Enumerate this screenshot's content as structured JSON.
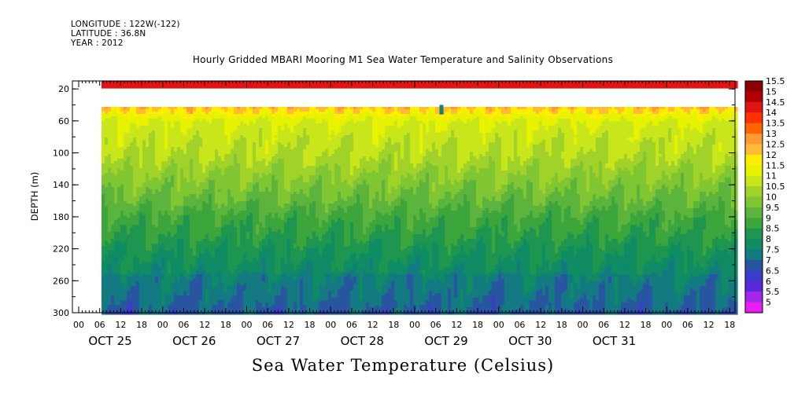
{
  "header": {
    "longitude": "LONGITUDE : 122W(-122)",
    "latitude": "LATITUDE : 36.8N",
    "year": "YEAR : 2012"
  },
  "chart_data": {
    "type": "heatmap",
    "title": "Hourly Gridded MBARI Mooring M1 Sea Water Temperature and Salinity Observations",
    "bottom_title": "Sea Water Temperature (Celsius)",
    "ylabel": "DEPTH (m)",
    "ylim": [
      300,
      10
    ],
    "y_ticks": [
      "20",
      "60",
      "100",
      "140",
      "180",
      "220",
      "260",
      "300"
    ],
    "x_hour_ticks": [
      "00",
      "06",
      "12",
      "18",
      "00",
      "06",
      "12",
      "18",
      "00",
      "06",
      "12",
      "18",
      "00",
      "06",
      "12",
      "18",
      "00",
      "06",
      "12",
      "18",
      "00",
      "06",
      "12",
      "18",
      "00",
      "06",
      "12",
      "18",
      "00",
      "06",
      "12",
      "18"
    ],
    "x_day_labels": [
      "OCT 25",
      "OCT 26",
      "OCT 27",
      "OCT 28",
      "OCT 29",
      "OCT 30",
      "OCT 31"
    ],
    "colorbar": {
      "labels": [
        "15.5",
        "15",
        "14.5",
        "14",
        "13.5",
        "13",
        "12.5",
        "12",
        "11.5",
        "11",
        "10.5",
        "10",
        "9.5",
        "9",
        "8.5",
        "8",
        "7.5",
        "7",
        "6.5",
        "6",
        "5.5",
        "5"
      ],
      "colors": [
        "#8b0000",
        "#b30000",
        "#e01414",
        "#ff3300",
        "#ff6600",
        "#ff9933",
        "#ffbb33",
        "#ffee00",
        "#e6f200",
        "#c8e61a",
        "#a0d22a",
        "#80c632",
        "#5cb43c",
        "#3ca53c",
        "#1e9650",
        "#0f8c64",
        "#147a82",
        "#2855a0",
        "#3c3cc8",
        "#5a28dc",
        "#a028e6",
        "#e61ef5"
      ],
      "values": [
        15.5,
        15,
        14.5,
        14,
        13.5,
        13,
        12.5,
        12,
        11.5,
        11,
        10.5,
        10,
        9.5,
        9,
        8.5,
        8,
        7.5,
        7,
        6.5,
        6,
        5.5,
        5
      ]
    },
    "temperature_profile": {
      "depths_m": [
        10,
        40,
        50,
        60,
        80,
        100,
        120,
        140,
        160,
        180,
        200,
        220,
        240,
        260,
        280,
        300
      ],
      "temps_c": [
        14.6,
        12.6,
        12.0,
        11.5,
        11.2,
        11.0,
        10.6,
        10.2,
        9.8,
        9.3,
        9.0,
        8.6,
        8.3,
        8.0,
        7.8,
        7.5
      ],
      "missing_range_m": [
        17,
        40
      ]
    }
  }
}
